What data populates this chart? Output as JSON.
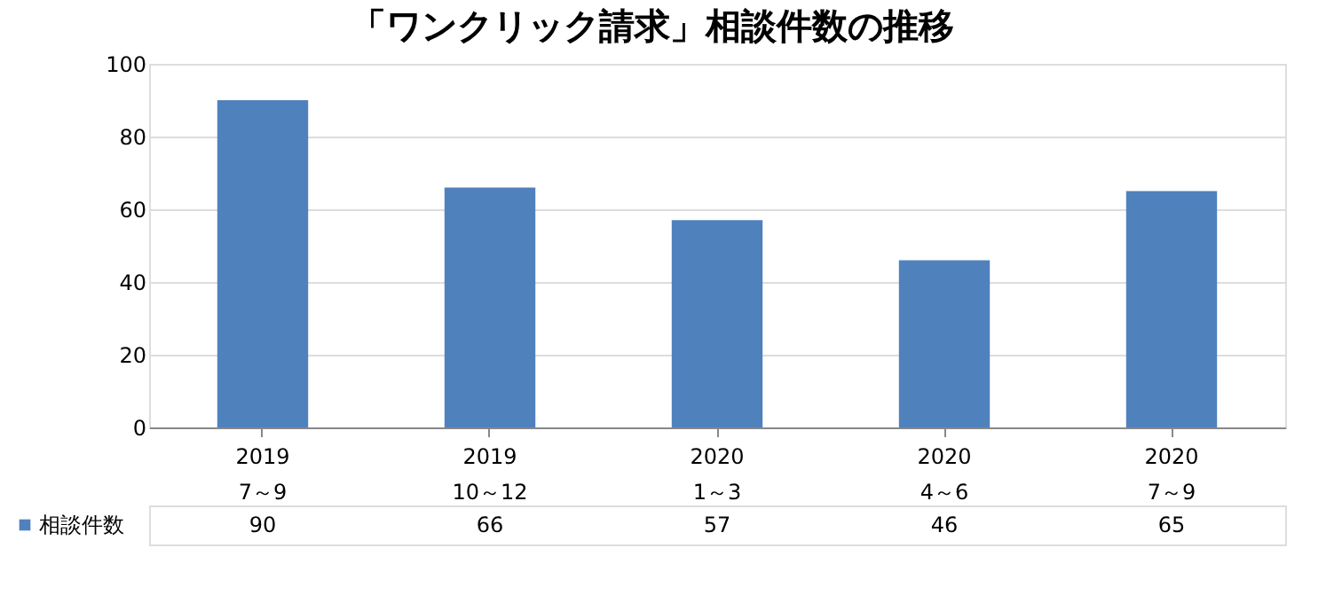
{
  "chart_data": {
    "type": "bar",
    "title": "「ワンクリック請求」相談件数の推移",
    "categories": [
      "2019\n7～9",
      "2019\n10～12",
      "2020\n1～3",
      "2020\n4～6",
      "2020\n7～9"
    ],
    "series": [
      {
        "name": "相談件数",
        "color": "#4f81bd",
        "values": [
          90,
          66,
          57,
          46,
          65
        ]
      }
    ],
    "ylim": [
      0,
      100
    ],
    "yticks": [
      0,
      20,
      40,
      60,
      80,
      100
    ],
    "grid": "y",
    "data_labels": true
  }
}
